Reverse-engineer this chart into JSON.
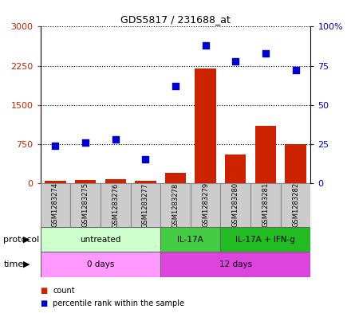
{
  "title": "GDS5817 / 231688_at",
  "samples": [
    "GSM1283274",
    "GSM1283275",
    "GSM1283276",
    "GSM1283277",
    "GSM1283278",
    "GSM1283279",
    "GSM1283280",
    "GSM1283281",
    "GSM1283282"
  ],
  "count_values": [
    50,
    60,
    70,
    40,
    200,
    2200,
    550,
    1100,
    750
  ],
  "percentile_values": [
    24,
    26,
    28,
    15,
    62,
    88,
    78,
    83,
    72
  ],
  "ylim_left": [
    0,
    3000
  ],
  "ylim_right": [
    0,
    100
  ],
  "yticks_left": [
    0,
    750,
    1500,
    2250,
    3000
  ],
  "ytick_labels_left": [
    "0",
    "750",
    "1500",
    "2250",
    "3000"
  ],
  "yticks_right": [
    0,
    25,
    50,
    75,
    100
  ],
  "ytick_labels_right": [
    "0",
    "25",
    "50",
    "75",
    "100%"
  ],
  "bar_color": "#cc2200",
  "dot_color": "#0000cc",
  "protocol_groups": [
    {
      "label": "untreated",
      "start": 0,
      "end": 4,
      "color": "#ccffcc"
    },
    {
      "label": "IL-17A",
      "start": 4,
      "end": 6,
      "color": "#44cc44"
    },
    {
      "label": "IL-17A + IFN-g",
      "start": 6,
      "end": 9,
      "color": "#22bb22"
    }
  ],
  "time_groups": [
    {
      "label": "0 days",
      "start": 0,
      "end": 4,
      "color": "#ff99ff"
    },
    {
      "label": "12 days",
      "start": 4,
      "end": 9,
      "color": "#dd44dd"
    }
  ],
  "legend_count_label": "count",
  "legend_percentile_label": "percentile rank within the sample",
  "protocol_label": "protocol",
  "time_label": "time",
  "tick_label_color_left": "#cc2200",
  "tick_label_color_right": "#0000cc",
  "bg_color": "#ffffff",
  "sample_box_color": "#cccccc"
}
